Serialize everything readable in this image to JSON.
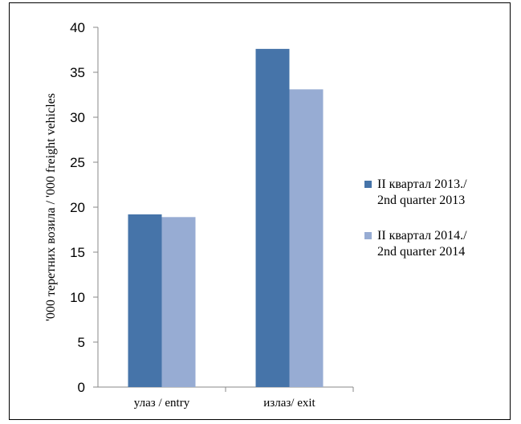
{
  "chart_data": {
    "type": "bar",
    "ylabel": "'000 теретних возила / '000 freight vehicles",
    "xlabel": "",
    "categories": [
      "улаз / entry",
      "излаз/ exit"
    ],
    "series": [
      {
        "name": "II квартал 2013./ 2nd quarter 2013",
        "name_lines": [
          "II квартал 2013./",
          "2nd quarter 2013"
        ],
        "values": [
          19.2,
          37.6
        ],
        "color": "#4674A9"
      },
      {
        "name": "II квартал 2014./ 2nd quarter 2014",
        "name_lines": [
          "II квартал 2014./",
          "2nd quarter 2014"
        ],
        "values": [
          18.9,
          33.1
        ],
        "color": "#97ACD3"
      }
    ],
    "ylim": [
      0,
      40
    ],
    "yticks": [
      "0",
      "5",
      "10",
      "15",
      "20",
      "25",
      "30",
      "35",
      "40"
    ],
    "grid": false,
    "legend": "right"
  }
}
